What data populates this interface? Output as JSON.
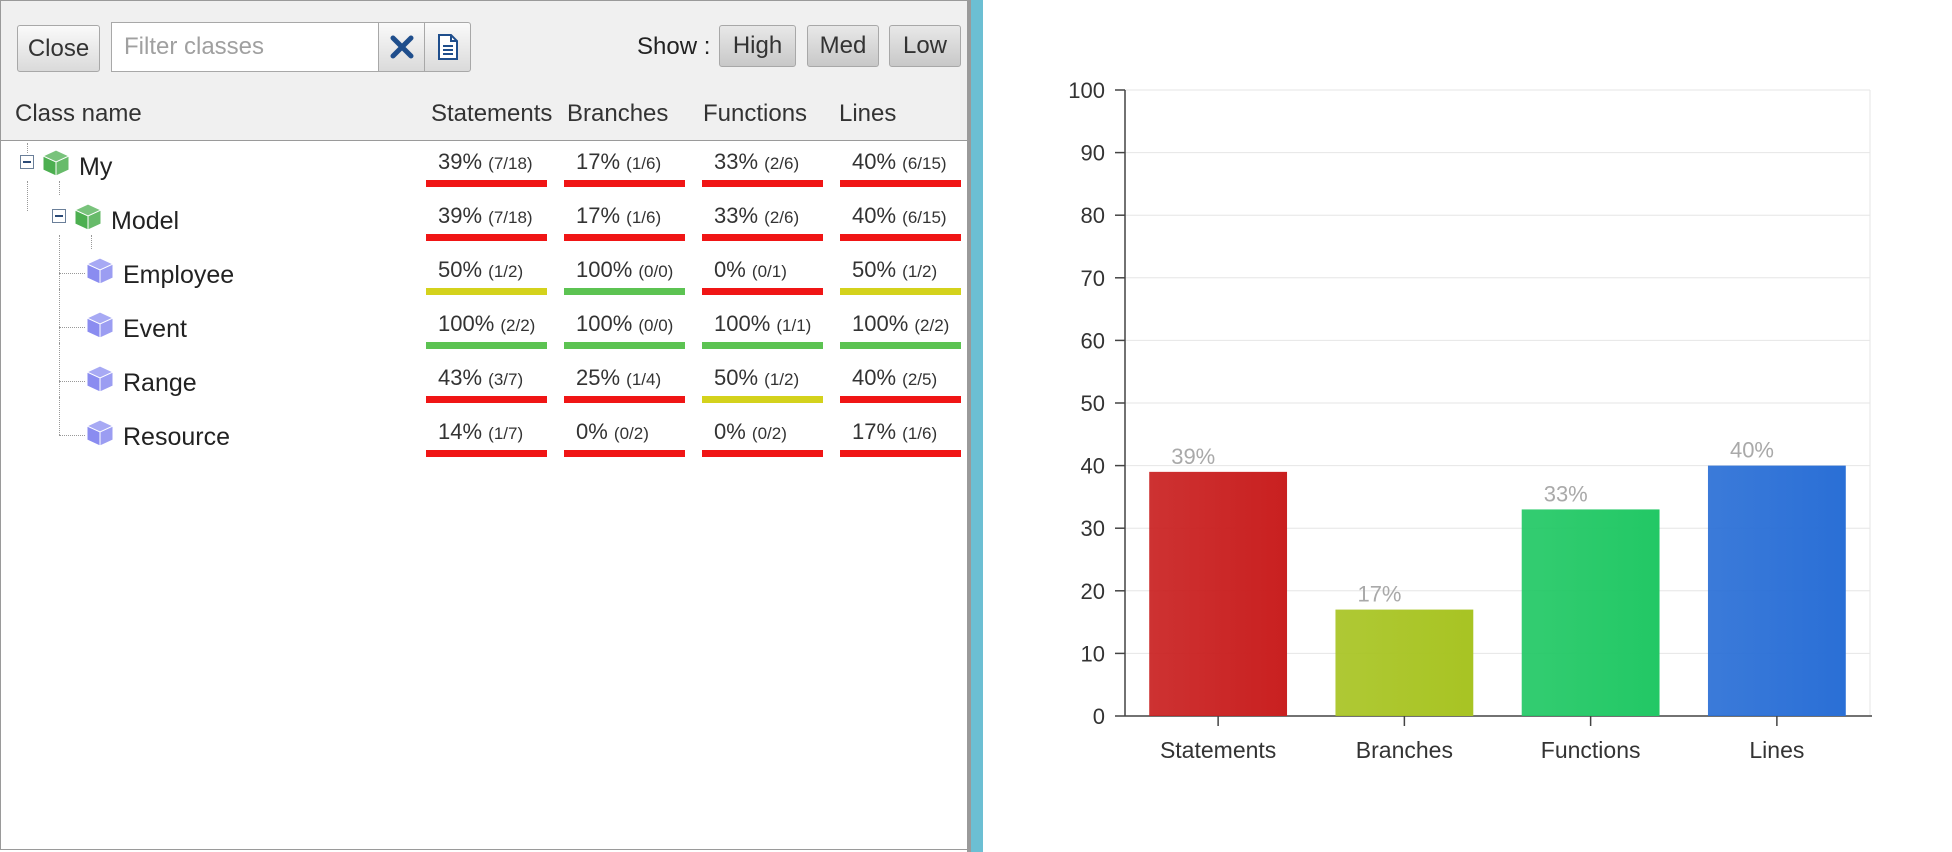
{
  "toolbar": {
    "close_label": "Close",
    "filter_placeholder": "Filter classes",
    "clear_icon": "x-icon",
    "export_icon": "document-icon",
    "show_label": "Show :",
    "high_label": "High",
    "med_label": "Med",
    "low_label": "Low"
  },
  "table": {
    "columns": [
      "Class name",
      "Statements",
      "Branches",
      "Functions",
      "Lines"
    ],
    "rows": [
      {
        "name": "My",
        "level": 0,
        "expandable": true,
        "icon": "package-icon",
        "cells": [
          {
            "pct": "39%",
            "frac": "(7/18)",
            "status": "low"
          },
          {
            "pct": "17%",
            "frac": "(1/6)",
            "status": "low"
          },
          {
            "pct": "33%",
            "frac": "(2/6)",
            "status": "low"
          },
          {
            "pct": "40%",
            "frac": "(6/15)",
            "status": "low"
          }
        ]
      },
      {
        "name": "Model",
        "level": 1,
        "expandable": true,
        "icon": "package-icon",
        "cells": [
          {
            "pct": "39%",
            "frac": "(7/18)",
            "status": "low"
          },
          {
            "pct": "17%",
            "frac": "(1/6)",
            "status": "low"
          },
          {
            "pct": "33%",
            "frac": "(2/6)",
            "status": "low"
          },
          {
            "pct": "40%",
            "frac": "(6/15)",
            "status": "low"
          }
        ]
      },
      {
        "name": "Employee",
        "level": 2,
        "expandable": false,
        "icon": "class-icon",
        "cells": [
          {
            "pct": "50%",
            "frac": "(1/2)",
            "status": "med"
          },
          {
            "pct": "100%",
            "frac": "(0/0)",
            "status": "high"
          },
          {
            "pct": "0%",
            "frac": "(0/1)",
            "status": "low"
          },
          {
            "pct": "50%",
            "frac": "(1/2)",
            "status": "med"
          }
        ]
      },
      {
        "name": "Event",
        "level": 2,
        "expandable": false,
        "icon": "class-icon",
        "cells": [
          {
            "pct": "100%",
            "frac": "(2/2)",
            "status": "high"
          },
          {
            "pct": "100%",
            "frac": "(0/0)",
            "status": "high"
          },
          {
            "pct": "100%",
            "frac": "(1/1)",
            "status": "high"
          },
          {
            "pct": "100%",
            "frac": "(2/2)",
            "status": "high"
          }
        ]
      },
      {
        "name": "Range",
        "level": 2,
        "expandable": false,
        "icon": "class-icon",
        "cells": [
          {
            "pct": "43%",
            "frac": "(3/7)",
            "status": "low"
          },
          {
            "pct": "25%",
            "frac": "(1/4)",
            "status": "low"
          },
          {
            "pct": "50%",
            "frac": "(1/2)",
            "status": "med"
          },
          {
            "pct": "40%",
            "frac": "(2/5)",
            "status": "low"
          }
        ]
      },
      {
        "name": "Resource",
        "level": 2,
        "expandable": false,
        "icon": "class-icon",
        "cells": [
          {
            "pct": "14%",
            "frac": "(1/7)",
            "status": "low"
          },
          {
            "pct": "0%",
            "frac": "(0/2)",
            "status": "low"
          },
          {
            "pct": "0%",
            "frac": "(0/2)",
            "status": "low"
          },
          {
            "pct": "17%",
            "frac": "(1/6)",
            "status": "low"
          }
        ]
      }
    ]
  },
  "colors": {
    "low": "#f01515",
    "med": "#d4d21c",
    "high": "#5cc352",
    "package_icon": "#4caf50",
    "class_icon": "#8a8cf0"
  },
  "chart_data": {
    "type": "bar",
    "categories": [
      "Statements",
      "Branches",
      "Functions",
      "Lines"
    ],
    "values": [
      39,
      17,
      33,
      40
    ],
    "data_labels": [
      "39%",
      "17%",
      "33%",
      "40%"
    ],
    "colors": [
      "#c92020",
      "#a8c423",
      "#22c865",
      "#2a6fd6"
    ],
    "ylim": [
      0,
      100
    ],
    "yticks": [
      0,
      10,
      20,
      30,
      40,
      50,
      60,
      70,
      80,
      90,
      100
    ],
    "grid": true,
    "title": "",
    "xlabel": "",
    "ylabel": ""
  }
}
